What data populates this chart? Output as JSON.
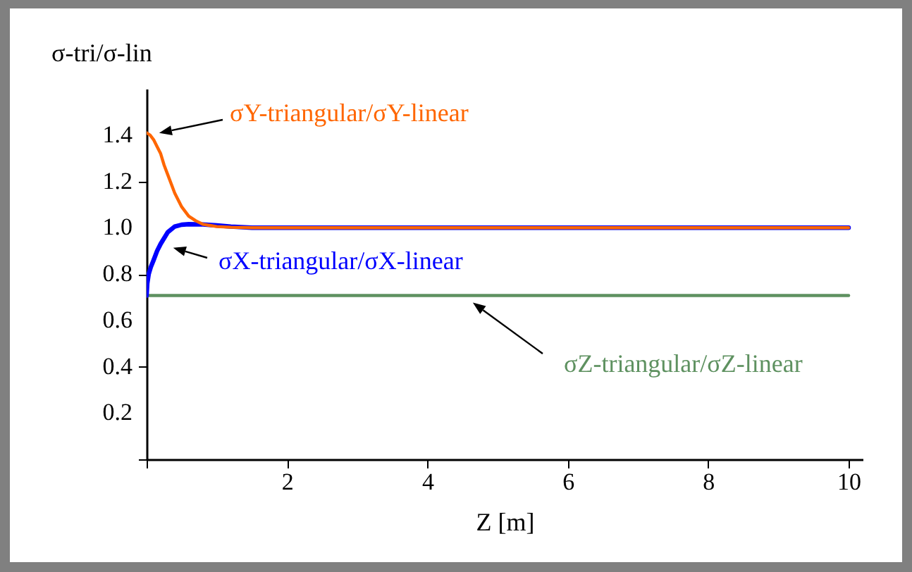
{
  "chart_data": {
    "type": "line",
    "ylabel": "σ-tri/σ-lin",
    "xlabel": "Z  [m]",
    "xlim": [
      0,
      10.2
    ],
    "xticks": [
      {
        "value": 0,
        "label": null
      },
      2,
      4,
      6,
      8,
      10
    ],
    "ylim": [
      0,
      1.6
    ],
    "yticks": [
      {
        "value": 0,
        "label": null
      },
      0.2,
      0.4,
      0.6,
      0.8,
      {
        "value": 1,
        "label": "1.0"
      },
      1.2,
      1.4
    ],
    "grid": false,
    "legend": false,
    "marker": "none",
    "line_style": "solid",
    "series": [
      {
        "color": "#ff6600",
        "x": [
          0,
          0.05,
          0.1,
          0.15,
          0.2,
          0.25,
          0.3,
          0.35,
          0.4,
          0.5,
          0.6,
          0.7,
          0.8,
          0.9,
          1.0,
          1.2,
          1.5,
          2,
          4,
          6,
          8,
          10
        ],
        "values": [
          1.41,
          1.4,
          1.38,
          1.35,
          1.32,
          1.27,
          1.23,
          1.19,
          1.15,
          1.09,
          1.05,
          1.03,
          1.015,
          1.01,
          1.005,
          1.002,
          1.0,
          1.0,
          1.0,
          1.0,
          1.0,
          1.0
        ]
      },
      {
        "color": "#0000ff",
        "x": [
          0,
          0.01,
          0.03,
          0.06,
          0.1,
          0.15,
          0.2,
          0.3,
          0.4,
          0.5,
          0.6,
          0.8,
          1.0,
          1.2,
          1.5,
          2,
          4,
          6,
          8,
          10
        ],
        "values": [
          0.707,
          0.76,
          0.8,
          0.83,
          0.86,
          0.9,
          0.93,
          0.98,
          1.005,
          1.013,
          1.015,
          1.014,
          1.01,
          1.005,
          1.0,
          1.0,
          1.0,
          1.0,
          1.0,
          1.0
        ]
      },
      {
        "color": "#5e9160",
        "x": [
          0,
          2,
          4,
          6,
          8,
          10
        ],
        "values": [
          0.707,
          0.707,
          0.707,
          0.707,
          0.707,
          0.707
        ]
      }
    ],
    "annotations": [
      "σY-triangular/σY-linear",
      "σX-triangular/σX-linear",
      "σZ-triangular/σZ-linear"
    ]
  }
}
